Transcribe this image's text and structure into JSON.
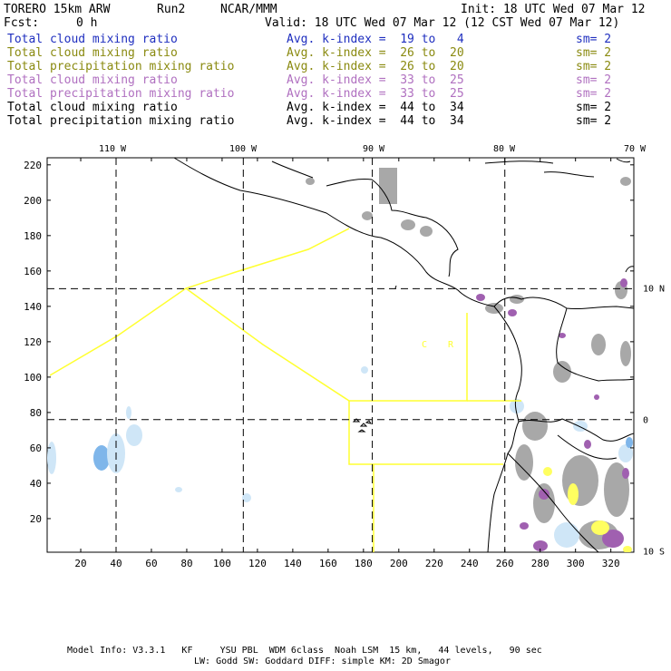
{
  "header": {
    "model": "TORERO 15km ARW",
    "run": "Run2",
    "org": "NCAR/MMM",
    "init": "Init: 18 UTC Wed 07 Mar 12",
    "fcst_label": "Fcst:",
    "fcst_value": "0 h",
    "valid": "Valid: 18 UTC Wed 07 Mar 12 (12 CST Wed 07 Mar 12)"
  },
  "legend": [
    {
      "field": "Total cloud mixing ratio",
      "kidx": "Avg. k-index =  19 to   4",
      "sm": "sm= 2",
      "color": "#1f2fbf"
    },
    {
      "field": "Total cloud mixing ratio",
      "kidx": "Avg. k-index =  26 to  20",
      "sm": "sm= 2",
      "color": "#8a8a10"
    },
    {
      "field": "Total precipitation mixing ratio",
      "kidx": "Avg. k-index =  26 to  20",
      "sm": "sm= 2",
      "color": "#8a8a10"
    },
    {
      "field": "Total cloud mixing ratio",
      "kidx": "Avg. k-index =  33 to  25",
      "sm": "sm= 2",
      "color": "#b070c0"
    },
    {
      "field": "Total precipitation mixing ratio",
      "kidx": "Avg. k-index =  33 to  25",
      "sm": "sm= 2",
      "color": "#b070c0"
    },
    {
      "field": "Total cloud mixing ratio",
      "kidx": "Avg. k-index =  44 to  34",
      "sm": "sm= 2",
      "color": "#000000"
    },
    {
      "field": "Total precipitation mixing ratio",
      "kidx": "Avg. k-index =  44 to  34",
      "sm": "sm= 2",
      "color": "#000000"
    }
  ],
  "map": {
    "lon_labels": [
      {
        "label": "110 W",
        "lon": -110
      },
      {
        "label": "100 W",
        "lon": -100
      },
      {
        "label": "90 W",
        "lon": -90
      },
      {
        "label": "80 W",
        "lon": -80
      },
      {
        "label": "70 W",
        "lon": -70
      }
    ],
    "lat_labels": [
      {
        "label": "10 N",
        "lat": 10
      },
      {
        "label": "0",
        "lat": 0
      },
      {
        "label": "10 S",
        "lat": -10
      }
    ],
    "x_ticks": [
      20,
      40,
      60,
      80,
      100,
      120,
      140,
      160,
      180,
      200,
      220,
      240,
      260,
      280,
      300,
      320
    ],
    "y_ticks": [
      20,
      40,
      60,
      80,
      100,
      120,
      140,
      160,
      180,
      200,
      220
    ],
    "x_range": [
      1,
      333
    ],
    "y_range": [
      1,
      224
    ],
    "grid_i": [
      40,
      112,
      185,
      260
    ],
    "grid_j": [
      150,
      76
    ],
    "region_labels": [
      "C",
      "R"
    ],
    "colors": {
      "boundary": "#ffff30",
      "cloud_light": "#cfe6f7",
      "cloud_blue": "#7fb6ea",
      "grey": "#a8a8a8",
      "purple": "#a060b0",
      "yellow": "#ffff60"
    }
  },
  "footer": {
    "line1": "Model Info: V3.3.1   KF     YSU PBL  WDM 6class  Noah LSM  15 km,   44 levels,   90 sec",
    "line2": "LW: Godd SW: Goddard DIFF: simple KM: 2D Smagor"
  }
}
